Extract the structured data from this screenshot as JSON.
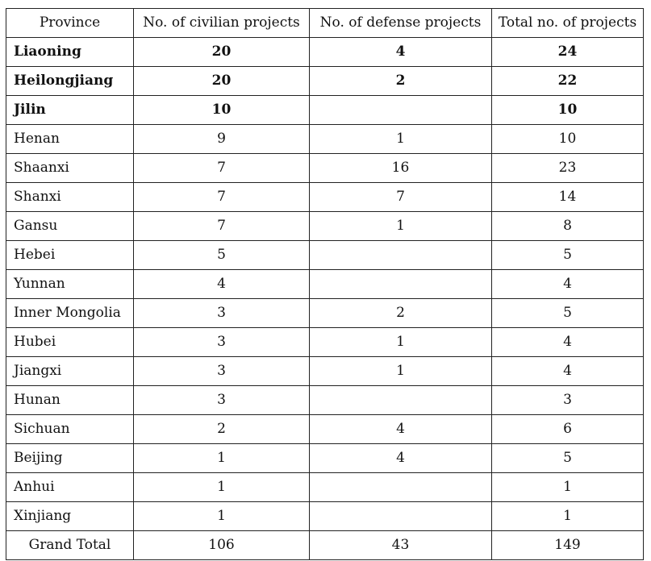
{
  "table": {
    "headers": [
      "Province",
      "No. of civilian projects",
      "No. of defense projects",
      "Total no. of projects"
    ],
    "rows": [
      {
        "province": "Liaoning",
        "civilian": "20",
        "defense": "4",
        "total": "24",
        "bold": true
      },
      {
        "province": "Heilongjiang",
        "civilian": "20",
        "defense": "2",
        "total": "22",
        "bold": true
      },
      {
        "province": "Jilin",
        "civilian": "10",
        "defense": "",
        "total": "10",
        "bold": true
      },
      {
        "province": "Henan",
        "civilian": "9",
        "defense": "1",
        "total": "10",
        "bold": false
      },
      {
        "province": "Shaanxi",
        "civilian": "7",
        "defense": "16",
        "total": "23",
        "bold": false
      },
      {
        "province": "Shanxi",
        "civilian": "7",
        "defense": "7",
        "total": "14",
        "bold": false
      },
      {
        "province": "Gansu",
        "civilian": "7",
        "defense": "1",
        "total": "8",
        "bold": false
      },
      {
        "province": "Hebei",
        "civilian": "5",
        "defense": "",
        "total": "5",
        "bold": false
      },
      {
        "province": "Yunnan",
        "civilian": "4",
        "defense": "",
        "total": "4",
        "bold": false
      },
      {
        "province": "Inner Mongolia",
        "civilian": "3",
        "defense": "2",
        "total": "5",
        "bold": false
      },
      {
        "province": "Hubei",
        "civilian": "3",
        "defense": "1",
        "total": "4",
        "bold": false
      },
      {
        "province": "Jiangxi",
        "civilian": "3",
        "defense": "1",
        "total": "4",
        "bold": false
      },
      {
        "province": "Hunan",
        "civilian": "3",
        "defense": "",
        "total": "3",
        "bold": false
      },
      {
        "province": "Sichuan",
        "civilian": "2",
        "defense": "4",
        "total": "6",
        "bold": false
      },
      {
        "province": "Beijing",
        "civilian": "1",
        "defense": "4",
        "total": "5",
        "bold": false
      },
      {
        "province": "Anhui",
        "civilian": "1",
        "defense": "",
        "total": "1",
        "bold": false
      },
      {
        "province": "Xinjiang",
        "civilian": "1",
        "defense": "",
        "total": "1",
        "bold": false
      }
    ],
    "grand_total": {
      "label": "Grand Total",
      "civilian": "106",
      "defense": "43",
      "total": "149"
    }
  }
}
